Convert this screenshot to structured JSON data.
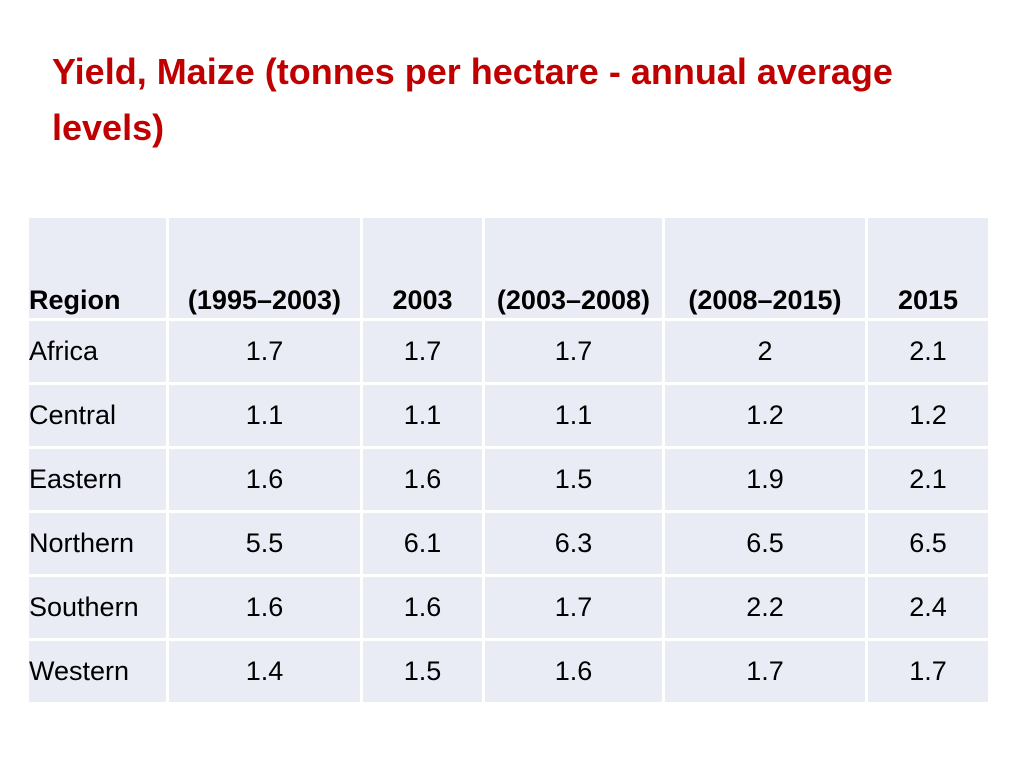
{
  "slide": {
    "title": "Yield, Maize (tonnes per hectare - annual average levels)"
  },
  "table": {
    "columns": [
      "Region",
      "(1995–2003)",
      "2003",
      "(2003–2008)",
      "(2008–2015)",
      "2015"
    ],
    "rows": [
      [
        "Africa",
        "1.7",
        "1.7",
        "1.7",
        "2",
        "2.1"
      ],
      [
        "Central",
        "1.1",
        "1.1",
        "1.1",
        "1.2",
        "1.2"
      ],
      [
        "Eastern",
        "1.6",
        "1.6",
        "1.5",
        "1.9",
        "2.1"
      ],
      [
        "Northern",
        "5.5",
        "6.1",
        "6.3",
        "6.5",
        "6.5"
      ],
      [
        "Southern",
        "1.6",
        "1.6",
        "1.7",
        "2.2",
        "2.4"
      ],
      [
        "Western",
        "1.4",
        "1.5",
        "1.6",
        "1.7",
        "1.7"
      ]
    ]
  },
  "colors": {
    "title": "#c00000",
    "cell_background": "#e9ebf5",
    "grid_lines": "#ffffff"
  }
}
